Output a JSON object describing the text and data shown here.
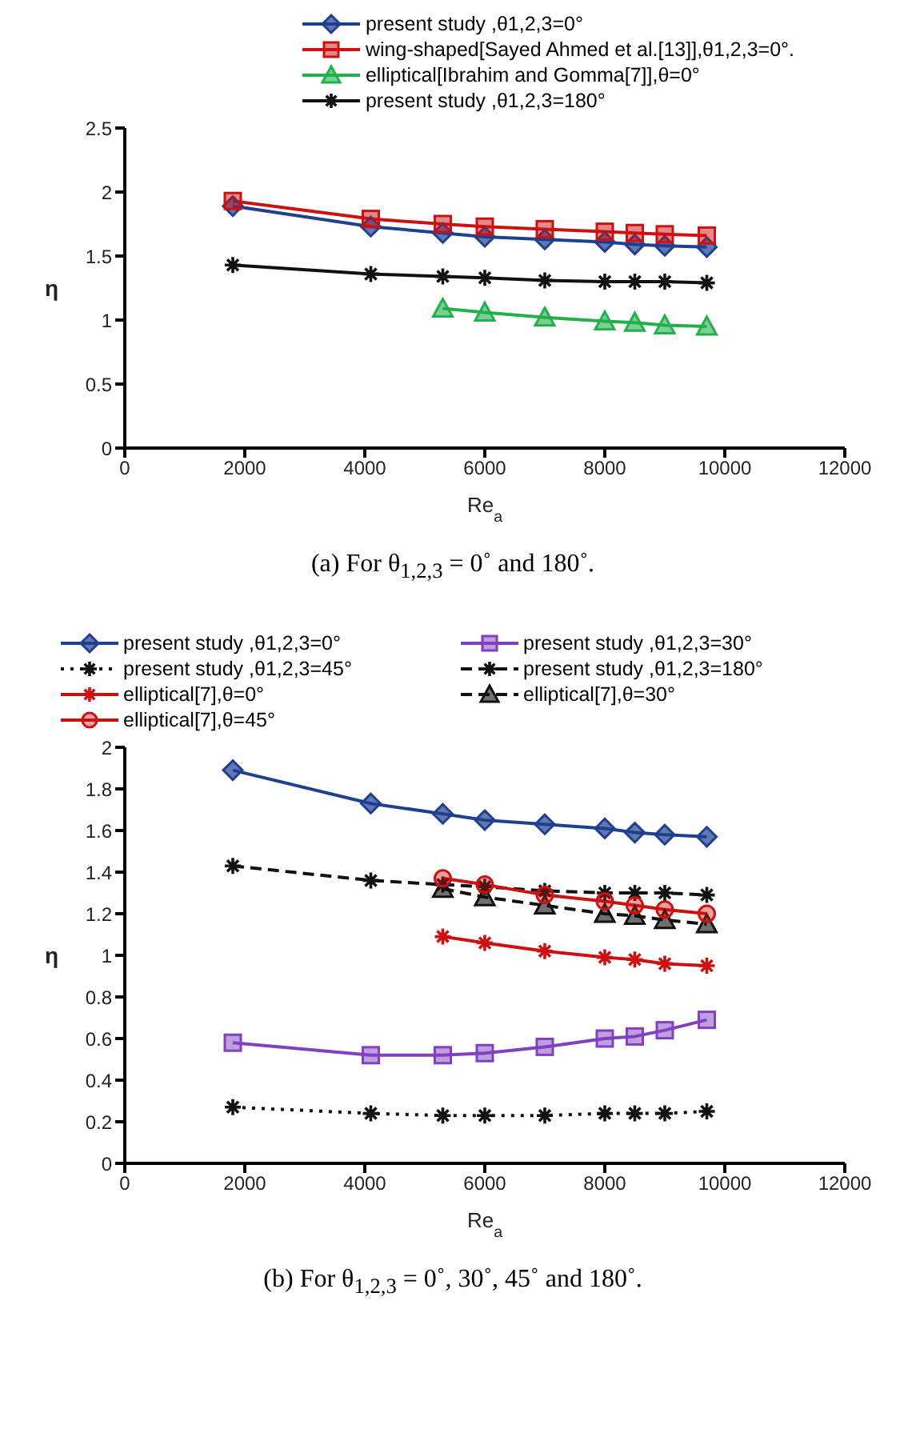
{
  "chart_data": [
    {
      "type": "line",
      "title": "(a) For θ$_{1,2,3}$ = 0˚ and 180˚.",
      "xlabel": "Re$_{a}$",
      "ylabel": "η",
      "x": [
        1800,
        4100,
        5300,
        6000,
        7000,
        8000,
        8500,
        9000,
        9700
      ],
      "series": [
        {
          "name": "present study ,θ1,2,3=0°",
          "color": "#1f3f8f",
          "marker": "diamond",
          "values": [
            1.89,
            1.73,
            1.68,
            1.65,
            1.63,
            1.61,
            1.59,
            1.58,
            1.57
          ]
        },
        {
          "name": "wing-shaped[Sayed Ahmed et al.[13]],θ1,2,3=0°.",
          "color": "#cc1111",
          "marker": "square",
          "values": [
            1.93,
            1.79,
            1.75,
            1.73,
            1.71,
            1.69,
            1.68,
            1.67,
            1.66
          ]
        },
        {
          "name": "elliptical[Ibrahim and Gomma[7]],θ=0°",
          "color": "#22b04a",
          "marker": "triangle",
          "values": [
            null,
            null,
            1.09,
            1.06,
            1.02,
            0.99,
            0.98,
            0.96,
            0.95
          ]
        },
        {
          "name": "present study ,θ1,2,3=180°",
          "color": "#111111",
          "marker": "cross",
          "values": [
            1.43,
            1.36,
            1.34,
            1.33,
            1.31,
            1.3,
            1.3,
            1.3,
            1.29
          ]
        }
      ],
      "xlim": [
        0,
        12000
      ],
      "xticks": [
        0,
        2000,
        4000,
        6000,
        8000,
        10000,
        12000
      ],
      "ylim": [
        0,
        2.5
      ],
      "yticks": [
        0,
        0.5,
        1,
        1.5,
        2,
        2.5
      ],
      "legend": "top"
    },
    {
      "type": "line",
      "title": "(b) For θ$_{1,2,3}$ = 0˚, 30˚, 45˚ and 180˚.",
      "xlabel": "Re$_{a}$",
      "ylabel": "η",
      "x": [
        1800,
        4100,
        5300,
        6000,
        7000,
        8000,
        8500,
        9000,
        9700
      ],
      "series": [
        {
          "name": "present study ,θ1,2,3=0°",
          "color": "#1f3f8f",
          "marker": "diamond",
          "values": [
            1.89,
            1.73,
            1.68,
            1.65,
            1.63,
            1.61,
            1.59,
            1.58,
            1.57
          ]
        },
        {
          "name": "present study ,θ1,2,3=30°",
          "color": "#8040c0",
          "marker": "square",
          "values": [
            0.58,
            0.52,
            0.52,
            0.53,
            0.56,
            0.6,
            0.61,
            0.64,
            0.69
          ]
        },
        {
          "name": "present study ,θ1,2,3=45°",
          "color": "#111111",
          "marker": "cross",
          "line_style": "dotted",
          "values": [
            0.27,
            0.24,
            0.23,
            0.23,
            0.23,
            0.24,
            0.24,
            0.24,
            0.25
          ]
        },
        {
          "name": "present study ,θ1,2,3=180°",
          "color": "#111111",
          "marker": "cross",
          "line_style": "dashed",
          "values": [
            1.43,
            1.36,
            1.34,
            1.33,
            1.31,
            1.3,
            1.3,
            1.3,
            1.29
          ]
        },
        {
          "name": "elliptical[7],θ=0°",
          "color": "#cc1111",
          "marker": "cross",
          "values": [
            null,
            null,
            1.09,
            1.06,
            1.02,
            0.99,
            0.98,
            0.96,
            0.95
          ]
        },
        {
          "name": "elliptical[7],θ=30°",
          "color": "#111111",
          "marker": "triangle",
          "line_style": "dashed",
          "values": [
            null,
            null,
            1.32,
            1.28,
            1.24,
            1.2,
            1.19,
            1.17,
            1.15
          ]
        },
        {
          "name": "elliptical[7],θ=45°",
          "color": "#cc1111",
          "marker": "circle",
          "values": [
            null,
            null,
            1.37,
            1.34,
            1.29,
            1.26,
            1.24,
            1.22,
            1.2
          ]
        }
      ],
      "xlim": [
        0,
        12000
      ],
      "xticks": [
        0,
        2000,
        4000,
        6000,
        8000,
        10000,
        12000
      ],
      "ylim": [
        0,
        2
      ],
      "yticks": [
        0,
        0.2,
        0.4,
        0.6,
        0.8,
        1,
        1.2,
        1.4,
        1.6,
        1.8,
        2
      ],
      "legend": "top"
    }
  ]
}
